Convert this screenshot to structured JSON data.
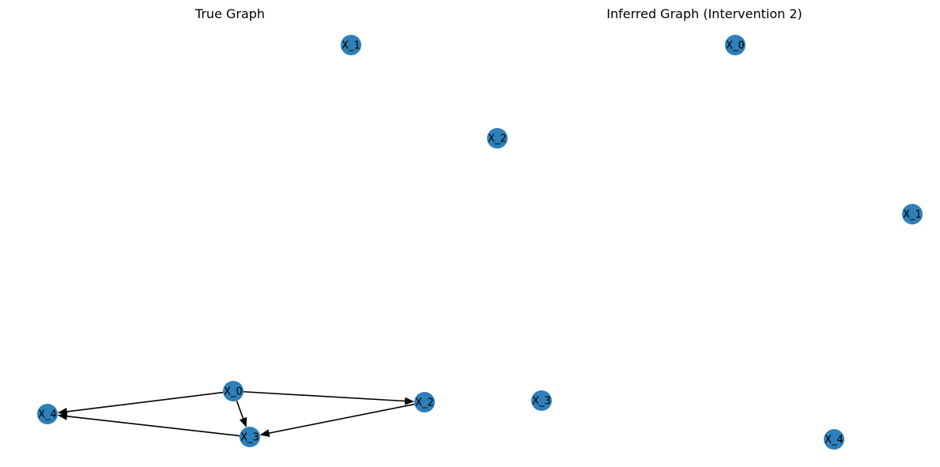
{
  "style": {
    "node_color": "#2f7fb8",
    "edge_color": "#000000",
    "label_color": "#000000",
    "background": "#ffffff"
  },
  "panels": [
    {
      "id": "true-graph",
      "title": "True Graph",
      "nodes": [
        "X_0",
        "X_1",
        "X_2",
        "X_3",
        "X_4"
      ],
      "edges": [
        {
          "from": "X_0",
          "to": "X_2"
        },
        {
          "from": "X_0",
          "to": "X_3"
        },
        {
          "from": "X_0",
          "to": "X_4"
        },
        {
          "from": "X_2",
          "to": "X_3"
        },
        {
          "from": "X_3",
          "to": "X_4"
        }
      ]
    },
    {
      "id": "inferred-graph",
      "title": "Inferred Graph (Intervention 2)",
      "nodes": [
        "X_0",
        "X_1",
        "X_2",
        "X_3",
        "X_4"
      ],
      "edges": []
    }
  ]
}
